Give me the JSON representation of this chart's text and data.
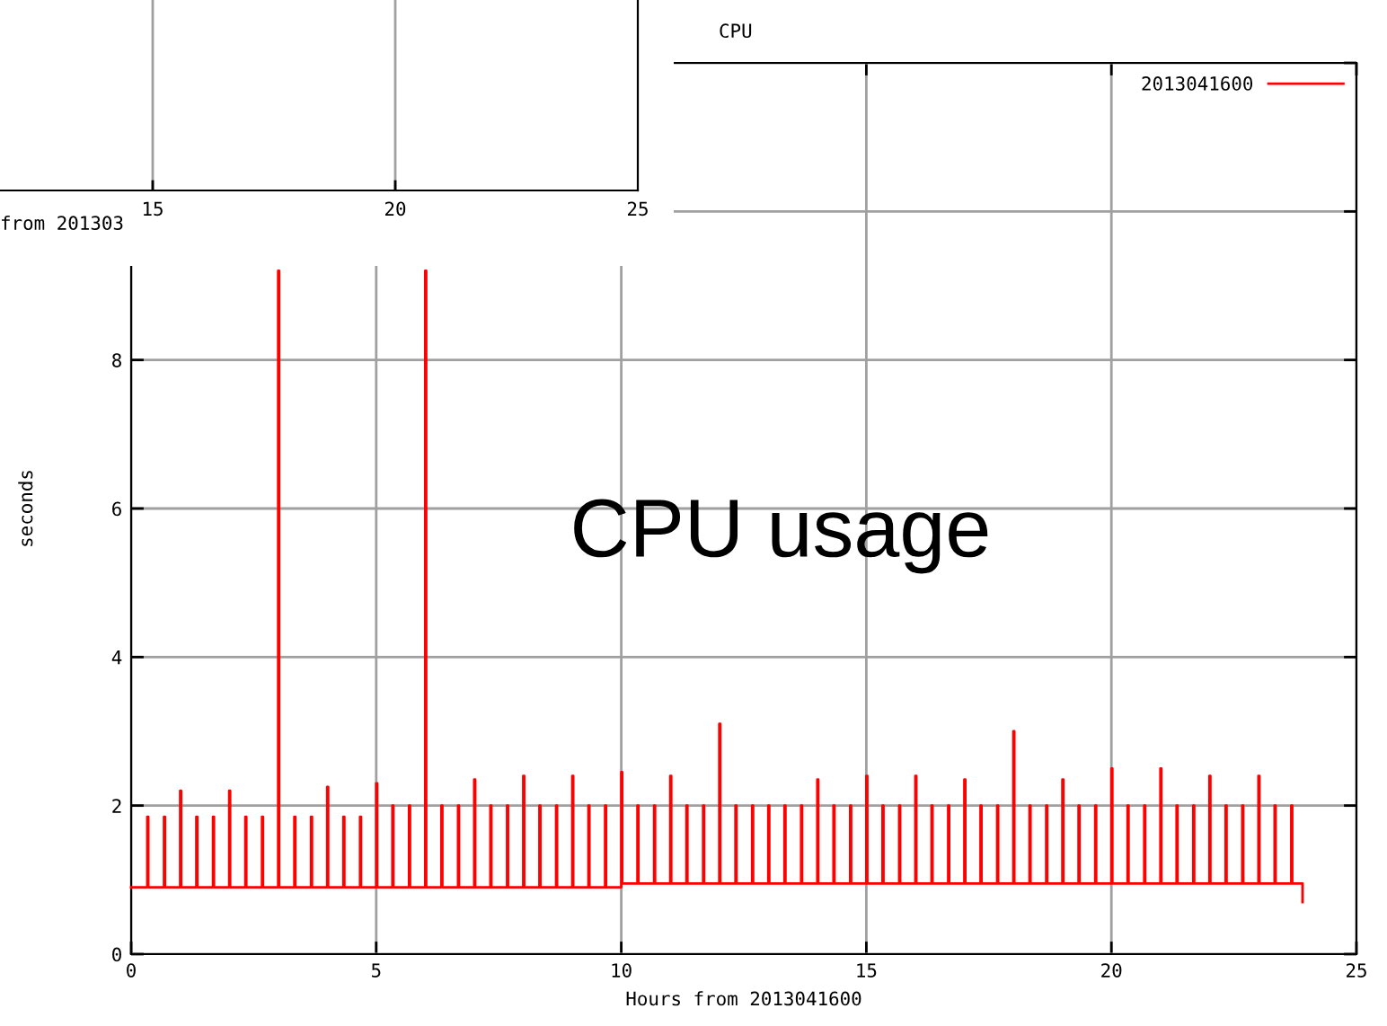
{
  "chart_data": [
    {
      "type": "step",
      "title": "CPU",
      "xlabel": "Hours from 2013041600",
      "ylabel": "seconds",
      "xlim": [
        0,
        25
      ],
      "xticks": [
        0,
        5,
        10,
        15,
        20,
        25
      ],
      "ylim": [
        0,
        12
      ],
      "yticks": [
        0,
        2,
        4,
        6,
        8,
        {
          "value": 10,
          "label": null
        },
        {
          "value": 12,
          "label": null
        }
      ],
      "grid": true,
      "legend": "top right",
      "annotations": [
        "CPU usage"
      ],
      "x": [
        0,
        0.33,
        0.35,
        0.67,
        0.69,
        1,
        1.02,
        1.33,
        1.35,
        1.67,
        1.69,
        2,
        2.02,
        2.33,
        2.35,
        2.67,
        2.69,
        3,
        3.02,
        3.33,
        3.35,
        3.67,
        3.69,
        4,
        4.02,
        4.33,
        4.35,
        4.67,
        4.69,
        5,
        5.02,
        5.33,
        5.35,
        5.67,
        5.69,
        6,
        6.02,
        6.33,
        6.35,
        6.67,
        6.69,
        7,
        7.02,
        7.33,
        7.35,
        7.67,
        7.69,
        8,
        8.02,
        8.33,
        8.35,
        8.67,
        8.69,
        9,
        9.02,
        9.33,
        9.35,
        9.67,
        9.69,
        10,
        10.02,
        10.33,
        10.35,
        10.67,
        10.69,
        11,
        11.02,
        11.33,
        11.35,
        11.67,
        11.69,
        12,
        12.02,
        12.33,
        12.35,
        12.67,
        12.69,
        13,
        13.02,
        13.33,
        13.35,
        13.67,
        13.69,
        14,
        14.02,
        14.33,
        14.35,
        14.67,
        14.69,
        15,
        15.02,
        15.33,
        15.35,
        15.67,
        15.69,
        16,
        16.02,
        16.33,
        16.35,
        16.67,
        16.69,
        17,
        17.02,
        17.33,
        17.35,
        17.67,
        17.69,
        18,
        18.02,
        18.33,
        18.35,
        18.67,
        18.69,
        19,
        19.02,
        19.33,
        19.35,
        19.67,
        19.69,
        20,
        20.02,
        20.33,
        20.35,
        20.67,
        20.69,
        21,
        21.02,
        21.33,
        21.35,
        21.67,
        21.69,
        22,
        22.02,
        22.33,
        22.35,
        22.67,
        22.69,
        23,
        23.02,
        23.33,
        23.35,
        23.67,
        23.69,
        23.9
      ],
      "series": [
        {
          "name": "2013041600",
          "color": "#ff0000",
          "values": [
            0.9,
            1.85,
            0.9,
            1.85,
            0.9,
            2.2,
            0.9,
            1.85,
            0.9,
            1.85,
            0.9,
            2.2,
            0.9,
            1.85,
            0.9,
            1.85,
            0.9,
            9.2,
            0.9,
            1.85,
            0.9,
            1.85,
            0.9,
            2.25,
            0.9,
            1.85,
            0.9,
            1.85,
            0.9,
            2.3,
            0.9,
            2,
            0.9,
            2,
            0.9,
            9.2,
            0.9,
            2,
            0.9,
            2,
            0.9,
            2.35,
            0.9,
            2,
            0.9,
            2,
            0.9,
            2.4,
            0.9,
            2,
            0.9,
            2,
            0.9,
            2.4,
            0.9,
            2,
            0.9,
            2,
            0.9,
            2.45,
            0.95,
            2,
            0.95,
            2,
            0.95,
            2.4,
            0.95,
            2,
            0.95,
            2,
            0.95,
            3.1,
            0.95,
            2,
            0.95,
            2,
            0.95,
            2,
            0.95,
            2,
            0.95,
            2,
            0.95,
            2.35,
            0.95,
            2,
            0.95,
            2,
            0.95,
            2.4,
            0.95,
            2,
            0.95,
            2,
            0.95,
            2.4,
            0.95,
            2,
            0.95,
            2,
            0.95,
            2.35,
            0.95,
            2,
            0.95,
            2,
            0.95,
            3,
            0.95,
            2,
            0.95,
            2,
            0.95,
            2.35,
            0.95,
            2,
            0.95,
            2,
            0.95,
            2.5,
            0.95,
            2,
            0.95,
            2,
            0.95,
            2.5,
            0.95,
            2,
            0.95,
            2,
            0.95,
            2.4,
            0.95,
            2,
            0.95,
            2,
            0.95,
            2.4,
            0.95,
            2,
            0.95,
            2,
            0.95,
            0.7
          ]
        }
      ]
    },
    {
      "type": "other",
      "xlabel": "from 201303",
      "annotations": [
        "15",
        "20",
        "25"
      ]
    }
  ]
}
